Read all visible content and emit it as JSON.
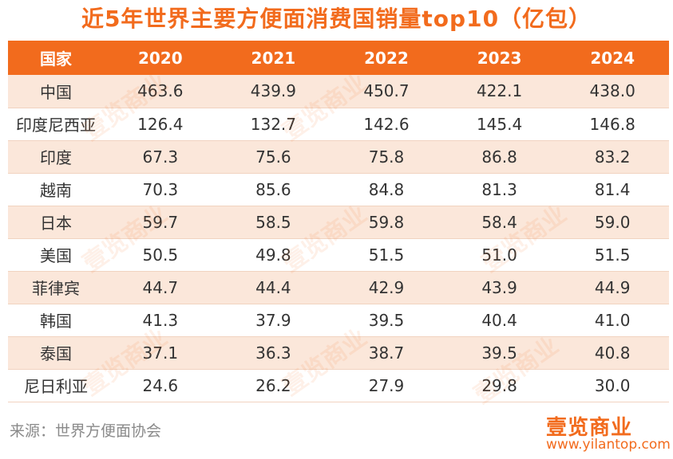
{
  "title": "近5年世界主要方便面消费国销量top10（亿包）",
  "table": {
    "headers": [
      "国家",
      "2020",
      "2021",
      "2022",
      "2023",
      "2024"
    ],
    "rows": [
      [
        "中国",
        "463.6",
        "439.9",
        "450.7",
        "422.1",
        "438.0"
      ],
      [
        "印度尼西亚",
        "126.4",
        "132.7",
        "142.6",
        "145.4",
        "146.8"
      ],
      [
        "印度",
        "67.3",
        "75.6",
        "75.8",
        "86.8",
        "83.2"
      ],
      [
        "越南",
        "70.3",
        "85.6",
        "84.8",
        "81.3",
        "81.4"
      ],
      [
        "日本",
        "59.7",
        "58.5",
        "59.8",
        "58.4",
        "59.0"
      ],
      [
        "美国",
        "50.5",
        "49.8",
        "51.5",
        "51.0",
        "51.5"
      ],
      [
        "菲律宾",
        "44.7",
        "44.4",
        "42.9",
        "43.9",
        "44.9"
      ],
      [
        "韩国",
        "41.3",
        "37.9",
        "39.5",
        "40.4",
        "41.0"
      ],
      [
        "泰国",
        "37.1",
        "36.3",
        "38.7",
        "39.5",
        "40.8"
      ],
      [
        "尼日利亚",
        "24.6",
        "26.2",
        "27.9",
        "29.8",
        "30.0"
      ]
    ]
  },
  "source": "来源：世界方便面协会",
  "logo": {
    "name": "壹览商业",
    "url": "www.yilantop.com"
  },
  "watermark": "壹览商业",
  "colors": {
    "accent": "#f26b1d",
    "row_band": "#fbe7da",
    "text": "#333333",
    "source_text": "#8a8a8a"
  }
}
